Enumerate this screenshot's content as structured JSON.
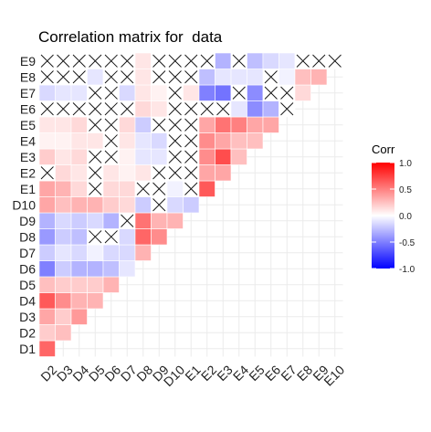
{
  "chart_data": {
    "type": "heatmap",
    "title": "Correlation matrix for  data",
    "x_labels": [
      "D2",
      "D3",
      "D4",
      "D5",
      "D6",
      "D7",
      "D8",
      "D9",
      "D10",
      "E1",
      "E2",
      "E3",
      "E4",
      "E5",
      "E6",
      "E7",
      "E8",
      "E9",
      "E10"
    ],
    "y_labels": [
      "D1",
      "D2",
      "D3",
      "D4",
      "D5",
      "D6",
      "D7",
      "D8",
      "D9",
      "D10",
      "E1",
      "E2",
      "E3",
      "E4",
      "E5",
      "E6",
      "E7",
      "E8",
      "E9"
    ],
    "legend": {
      "title": "Corr",
      "ticks": [
        "1.0",
        "0.5",
        "0.0",
        "-0.5",
        "-1.0"
      ],
      "tick_values": [
        1.0,
        0.5,
        0.0,
        -0.5,
        -1.0
      ],
      "low_color": "#0000FF",
      "mid_color": "#FFFFFF",
      "high_color": "#FF0000",
      "position": "right"
    },
    "insignificant_marker": "X",
    "grid": true,
    "values": [
      [
        0.6,
        null,
        null,
        null,
        null,
        null,
        null,
        null,
        null,
        null,
        null,
        null,
        null,
        null,
        null,
        null,
        null,
        null,
        null
      ],
      [
        0.2,
        0.25,
        null,
        null,
        null,
        null,
        null,
        null,
        null,
        null,
        null,
        null,
        null,
        null,
        null,
        null,
        null,
        null,
        null
      ],
      [
        0.35,
        0.2,
        0.4,
        null,
        null,
        null,
        null,
        null,
        null,
        null,
        null,
        null,
        null,
        null,
        null,
        null,
        null,
        null,
        null
      ],
      [
        0.65,
        0.45,
        0.3,
        0.3,
        null,
        null,
        null,
        null,
        null,
        null,
        null,
        null,
        null,
        null,
        null,
        null,
        null,
        null,
        null
      ],
      [
        0.25,
        0.2,
        0.2,
        0.2,
        0.3,
        null,
        null,
        null,
        null,
        null,
        null,
        null,
        null,
        null,
        null,
        null,
        null,
        null,
        null
      ],
      [
        -0.5,
        -0.2,
        -0.3,
        -0.3,
        -0.25,
        -0.1,
        null,
        null,
        null,
        null,
        null,
        null,
        null,
        null,
        null,
        null,
        null,
        null,
        null
      ],
      [
        -0.2,
        -0.1,
        -0.15,
        -0.05,
        -0.15,
        -0.15,
        0.3,
        null,
        null,
        null,
        null,
        null,
        null,
        null,
        null,
        null,
        null,
        null,
        null
      ],
      [
        -0.4,
        -0.2,
        -0.25,
        "X",
        "X",
        -0.15,
        0.6,
        0.45,
        null,
        null,
        null,
        null,
        null,
        null,
        null,
        null,
        null,
        null,
        null
      ],
      [
        -0.3,
        -0.15,
        -0.2,
        -0.15,
        -0.3,
        "X",
        0.55,
        0.3,
        0.3,
        null,
        null,
        null,
        null,
        null,
        null,
        null,
        null,
        null,
        null
      ],
      [
        0.35,
        0.25,
        0.3,
        0.3,
        0.2,
        0.15,
        -0.2,
        "X",
        -0.15,
        -0.2,
        null,
        null,
        null,
        null,
        null,
        null,
        null,
        null,
        null
      ],
      [
        0.35,
        0.3,
        0.15,
        "X",
        0.15,
        0.15,
        "X",
        "X",
        -0.05,
        "X",
        0.65,
        null,
        null,
        null,
        null,
        null,
        null,
        null,
        null
      ],
      [
        "X",
        0.15,
        0.1,
        "X",
        0.1,
        0.05,
        0.1,
        "X",
        "X",
        "X",
        0.35,
        0.35,
        null,
        null,
        null,
        null,
        null,
        null,
        null
      ],
      [
        0.2,
        0.1,
        0.15,
        "X",
        "X",
        0.05,
        -0.1,
        -0.1,
        "X",
        "X",
        0.45,
        0.7,
        0.25,
        null,
        null,
        null,
        null,
        null,
        null
      ],
      [
        0.05,
        0.05,
        0.1,
        0.1,
        "X",
        0.1,
        -0.1,
        -0.15,
        "X",
        "X",
        0.45,
        0.35,
        0.25,
        0.25,
        null,
        null,
        null,
        null,
        null
      ],
      [
        0.1,
        0.1,
        0.15,
        "X",
        "X",
        0.15,
        -0.2,
        "X",
        "X",
        "X",
        0.35,
        0.55,
        0.5,
        0.35,
        0.35,
        null,
        null,
        null,
        null
      ],
      [
        "X",
        "X",
        "X",
        "X",
        "X",
        "X",
        0.15,
        0.1,
        "X",
        "X",
        "X",
        "X",
        -0.1,
        -0.45,
        -0.3,
        "X",
        null,
        null,
        null
      ],
      [
        -0.15,
        -0.1,
        -0.1,
        "X",
        "X",
        -0.15,
        0.1,
        0.05,
        "X",
        0.1,
        -0.5,
        -0.55,
        "X",
        -0.45,
        "X",
        "X",
        0.15,
        null,
        null
      ],
      [
        "X",
        "X",
        "X",
        -0.1,
        "X",
        "X",
        0.1,
        "X",
        "X",
        "X",
        -0.25,
        -0.1,
        -0.1,
        -0.1,
        "X",
        -0.05,
        0.25,
        0.3,
        null
      ],
      [
        "X",
        "X",
        "X",
        "X",
        "X",
        "X",
        0.1,
        "X",
        "X",
        "X",
        "X",
        -0.3,
        "X",
        -0.25,
        -0.15,
        -0.1,
        "X",
        "X",
        "X"
      ]
    ]
  }
}
